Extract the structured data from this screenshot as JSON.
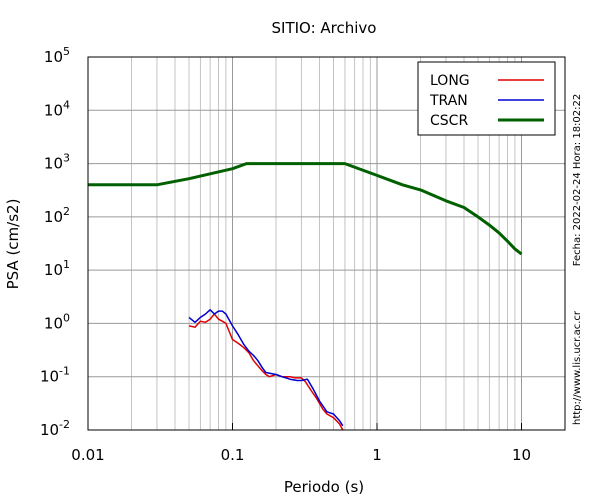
{
  "chart_data": {
    "type": "line",
    "title": "SITIO: Archivo",
    "xlabel": "Periodo (s)",
    "ylabel": "PSA (cm/s2)",
    "xscale": "log",
    "yscale": "log",
    "xlim": [
      0.01,
      20
    ],
    "ylim": [
      0.01,
      100000
    ],
    "grid": true,
    "legend_position": "top-right",
    "x_ticks": [
      {
        "value": 0.01,
        "label": "0.01"
      },
      {
        "value": 0.1,
        "label": "0.1"
      },
      {
        "value": 1,
        "label": "1"
      },
      {
        "value": 10,
        "label": "10"
      }
    ],
    "y_ticks": [
      {
        "value": 0.01,
        "base": "10",
        "exp": "-2"
      },
      {
        "value": 0.1,
        "base": "10",
        "exp": "-1"
      },
      {
        "value": 1,
        "base": "10",
        "exp": "0"
      },
      {
        "value": 10,
        "base": "10",
        "exp": "1"
      },
      {
        "value": 100,
        "base": "10",
        "exp": "2"
      },
      {
        "value": 1000,
        "base": "10",
        "exp": "3"
      },
      {
        "value": 10000,
        "base": "10",
        "exp": "4"
      },
      {
        "value": 100000,
        "base": "10",
        "exp": "5"
      }
    ],
    "series": [
      {
        "name": "LONG",
        "color": "#e00000",
        "width": 1.5,
        "points": [
          [
            0.05,
            0.9
          ],
          [
            0.055,
            0.85
          ],
          [
            0.06,
            1.1
          ],
          [
            0.065,
            1.05
          ],
          [
            0.07,
            1.2
          ],
          [
            0.075,
            1.5
          ],
          [
            0.08,
            1.2
          ],
          [
            0.085,
            1.1
          ],
          [
            0.09,
            1.0
          ],
          [
            0.1,
            0.5
          ],
          [
            0.11,
            0.42
          ],
          [
            0.12,
            0.35
          ],
          [
            0.13,
            0.28
          ],
          [
            0.14,
            0.2
          ],
          [
            0.15,
            0.16
          ],
          [
            0.16,
            0.13
          ],
          [
            0.17,
            0.11
          ],
          [
            0.18,
            0.1
          ],
          [
            0.2,
            0.11
          ],
          [
            0.22,
            0.1
          ],
          [
            0.25,
            0.1
          ],
          [
            0.27,
            0.095
          ],
          [
            0.3,
            0.095
          ],
          [
            0.32,
            0.08
          ],
          [
            0.35,
            0.055
          ],
          [
            0.38,
            0.04
          ],
          [
            0.42,
            0.025
          ],
          [
            0.45,
            0.02
          ],
          [
            0.5,
            0.017
          ],
          [
            0.55,
            0.013
          ],
          [
            0.58,
            0.01
          ]
        ]
      },
      {
        "name": "TRAN",
        "color": "#0000d0",
        "width": 1.5,
        "points": [
          [
            0.05,
            1.3
          ],
          [
            0.055,
            1.05
          ],
          [
            0.06,
            1.3
          ],
          [
            0.065,
            1.5
          ],
          [
            0.07,
            1.8
          ],
          [
            0.075,
            1.5
          ],
          [
            0.08,
            1.7
          ],
          [
            0.085,
            1.7
          ],
          [
            0.09,
            1.5
          ],
          [
            0.1,
            0.9
          ],
          [
            0.11,
            0.6
          ],
          [
            0.12,
            0.4
          ],
          [
            0.13,
            0.3
          ],
          [
            0.14,
            0.25
          ],
          [
            0.15,
            0.2
          ],
          [
            0.16,
            0.15
          ],
          [
            0.17,
            0.12
          ],
          [
            0.2,
            0.11
          ],
          [
            0.22,
            0.1
          ],
          [
            0.25,
            0.09
          ],
          [
            0.28,
            0.085
          ],
          [
            0.3,
            0.085
          ],
          [
            0.33,
            0.09
          ],
          [
            0.36,
            0.06
          ],
          [
            0.4,
            0.035
          ],
          [
            0.45,
            0.022
          ],
          [
            0.5,
            0.02
          ],
          [
            0.55,
            0.015
          ],
          [
            0.58,
            0.012
          ]
        ]
      },
      {
        "name": "CSCR",
        "color": "#006000",
        "width": 3,
        "points": [
          [
            0.01,
            400
          ],
          [
            0.03,
            400
          ],
          [
            0.05,
            520
          ],
          [
            0.1,
            800
          ],
          [
            0.125,
            1000
          ],
          [
            0.6,
            1000
          ],
          [
            1,
            600
          ],
          [
            1.5,
            400
          ],
          [
            2,
            320
          ],
          [
            3,
            200
          ],
          [
            4,
            150
          ],
          [
            5,
            100
          ],
          [
            6,
            70
          ],
          [
            7,
            50
          ],
          [
            8,
            35
          ],
          [
            9,
            25
          ],
          [
            10,
            20
          ]
        ]
      }
    ]
  },
  "side_text": {
    "date": "Fecha: 2022-02-24 Hora: 18:02:22",
    "url": "http://www.lis.ucr.ac.cr"
  }
}
